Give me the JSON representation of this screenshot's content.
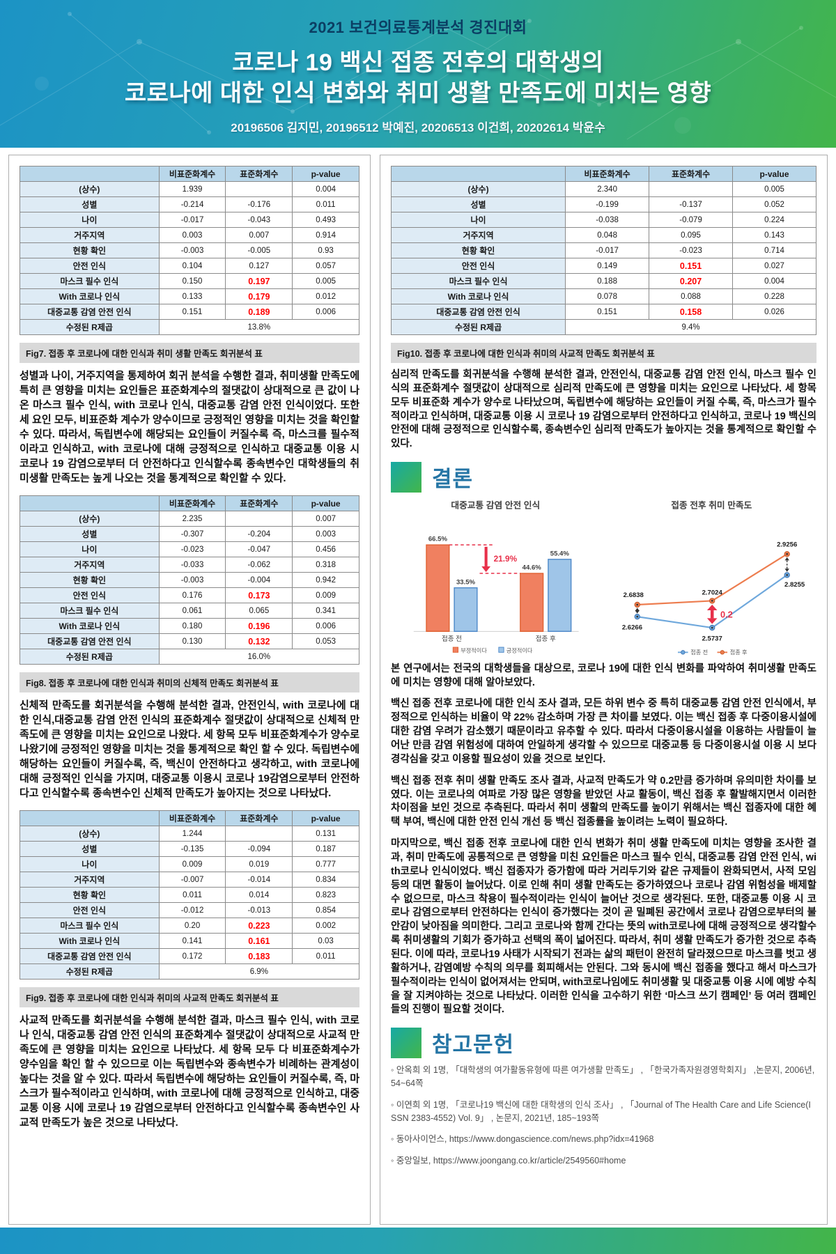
{
  "header": {
    "contest": "2021 보건의료통계분석 경진대회",
    "title_line1": "코로나 19 백신 접종 전후의 대학생의",
    "title_line2": "코로나에 대한 인식 변화와 취미 생활 만족도에 미치는 영향",
    "authors": "20196506 김지민, 20196512 박예진, 20206513 이건희, 20202614 박윤수"
  },
  "table_columns": [
    "비표준화계수",
    "표준화계수",
    "p-value"
  ],
  "r_label": "수정된 R제곱",
  "tables": [
    {
      "caption": "Fig7. 접종 후 코로나에 대한 인식과 취미 생활 만족도 회귀분석 표",
      "r_value": "13.8%",
      "rows": [
        {
          "label": "(상수)",
          "b": "1.939",
          "beta": "",
          "p": "0.004",
          "red": false
        },
        {
          "label": "성별",
          "b": "-0.214",
          "beta": "-0.176",
          "p": "0.011",
          "red": false
        },
        {
          "label": "나이",
          "b": "-0.017",
          "beta": "-0.043",
          "p": "0.493",
          "red": false
        },
        {
          "label": "거주지역",
          "b": "0.003",
          "beta": "0.007",
          "p": "0.914",
          "red": false
        },
        {
          "label": "현황 확인",
          "b": "-0.003",
          "beta": "-0.005",
          "p": "0.93",
          "red": false
        },
        {
          "label": "안전 인식",
          "b": "0.104",
          "beta": "0.127",
          "p": "0.057",
          "red": false
        },
        {
          "label": "마스크 필수 인식",
          "b": "0.150",
          "beta": "0.197",
          "p": "0.005",
          "red": true
        },
        {
          "label": "With 코로나 인식",
          "b": "0.133",
          "beta": "0.179",
          "p": "0.012",
          "red": true
        },
        {
          "label": "대중교통 감염 안전 인식",
          "b": "0.151",
          "beta": "0.189",
          "p": "0.006",
          "red": true
        }
      ]
    },
    {
      "caption": "Fig8. 접종 후 코로나에 대한 인식과 취미의 신체적 만족도 회귀분석 표",
      "r_value": "16.0%",
      "rows": [
        {
          "label": "(상수)",
          "b": "2.235",
          "beta": "",
          "p": "0.007",
          "red": false
        },
        {
          "label": "성별",
          "b": "-0.307",
          "beta": "-0.204",
          "p": "0.003",
          "red": false
        },
        {
          "label": "나이",
          "b": "-0.023",
          "beta": "-0.047",
          "p": "0.456",
          "red": false
        },
        {
          "label": "거주지역",
          "b": "-0.033",
          "beta": "-0.062",
          "p": "0.318",
          "red": false
        },
        {
          "label": "현황 확인",
          "b": "-0.003",
          "beta": "-0.004",
          "p": "0.942",
          "red": false
        },
        {
          "label": "안전 인식",
          "b": "0.176",
          "beta": "0.173",
          "p": "0.009",
          "red": true
        },
        {
          "label": "마스크 필수 인식",
          "b": "0.061",
          "beta": "0.065",
          "p": "0.341",
          "red": false
        },
        {
          "label": "With 코로나 인식",
          "b": "0.180",
          "beta": "0.196",
          "p": "0.006",
          "red": true
        },
        {
          "label": "대중교통 감염 안전 인식",
          "b": "0.130",
          "beta": "0.132",
          "p": "0.053",
          "red": true
        }
      ]
    },
    {
      "caption": "Fig9. 접종 후 코로나에 대한 인식과 취미의 사교적 만족도 회귀분석 표",
      "r_value": "6.9%",
      "rows": [
        {
          "label": "(상수)",
          "b": "1.244",
          "beta": "",
          "p": "0.131",
          "red": false
        },
        {
          "label": "성별",
          "b": "-0.135",
          "beta": "-0.094",
          "p": "0.187",
          "red": false
        },
        {
          "label": "나이",
          "b": "0.009",
          "beta": "0.019",
          "p": "0.777",
          "red": false
        },
        {
          "label": "거주지역",
          "b": "-0.007",
          "beta": "-0.014",
          "p": "0.834",
          "red": false
        },
        {
          "label": "현황 확인",
          "b": "0.011",
          "beta": "0.014",
          "p": "0.823",
          "red": false
        },
        {
          "label": "안전 인식",
          "b": "-0.012",
          "beta": "-0.013",
          "p": "0.854",
          "red": false
        },
        {
          "label": "마스크 필수 인식",
          "b": "0.20",
          "beta": "0.223",
          "p": "0.002",
          "red": true
        },
        {
          "label": "With 코로나 인식",
          "b": "0.141",
          "beta": "0.161",
          "p": "0.03",
          "red": true
        },
        {
          "label": "대중교통 감염 안전 인식",
          "b": "0.172",
          "beta": "0.183",
          "p": "0.011",
          "red": true
        }
      ]
    },
    {
      "caption": "Fig10. 접종 후 코로나에 대한 인식과 취미의 사교적 만족도 회귀분석 표",
      "r_value": "9.4%",
      "rows": [
        {
          "label": "(상수)",
          "b": "2.340",
          "beta": "",
          "p": "0.005",
          "red": false
        },
        {
          "label": "성별",
          "b": "-0.199",
          "beta": "-0.137",
          "p": "0.052",
          "red": false
        },
        {
          "label": "나이",
          "b": "-0.038",
          "beta": "-0.079",
          "p": "0.224",
          "red": false
        },
        {
          "label": "거주지역",
          "b": "0.048",
          "beta": "0.095",
          "p": "0.143",
          "red": false
        },
        {
          "label": "현황 확인",
          "b": "-0.017",
          "beta": "-0.023",
          "p": "0.714",
          "red": false
        },
        {
          "label": "안전 인식",
          "b": "0.149",
          "beta": "0.151",
          "p": "0.027",
          "red": true
        },
        {
          "label": "마스크 필수 인식",
          "b": "0.188",
          "beta": "0.207",
          "p": "0.004",
          "red": true
        },
        {
          "label": "With 코로나 인식",
          "b": "0.078",
          "beta": "0.088",
          "p": "0.228",
          "red": false
        },
        {
          "label": "대중교통 감염 안전 인식",
          "b": "0.151",
          "beta": "0.158",
          "p": "0.026",
          "red": true
        }
      ]
    }
  ],
  "paragraphs": {
    "fig7": "성별과 나이, 거주지역을 통제하여 회귀 분석을 수행한 결과, 취미생활 만족도에 특히 큰 영향을 미치는 요인들은 표준화계수의 절댓값이 상대적으로 큰 값이 나온 마스크 필수 인식, with 코로나 인식, 대중교통 감염 안전 인식이었다. 또한 세 요인 모두, 비표준화 계수가 양수이므로 긍정적인 영향을 미치는 것을 확인할 수 있다. 따라서, 독립변수에 해당되는 요인들이 커질수록 즉, 마스크를 필수적이라고 인식하고, with 코로나에 대해 긍정적으로 인식하고 대중교통 이용 시 코로나 19 감염으로부터 더 안전하다고 인식할수록 종속변수인 대학생들의 취미생활 만족도는 높게 나오는 것을 통계적으로 확인할 수 있다.",
    "fig8": "신체적 만족도를 회귀분석을 수행해 분석한 결과, 안전인식, with 코로나에 대한 인식,대중교통 감염 안전 인식의 표준화계수 절댓값이 상대적으로 신체적 만족도에 큰 영향을 미치는 요인으로 나왔다. 세 항목 모두 비표준화계수가 양수로 나왔기에 긍정적인 영향을 미치는 것을 통계적으로 확인 할 수 있다. 독립변수에 해당하는 요인들이 커질수록, 즉, 백신이 안전하다고 생각하고, with 코로나에 대해 긍정적인 인식을 가지며, 대중교통 이용시 코로나 19감염으로부터 안전하다고 인식할수록 종속변수인 신체적 만족도가 높아지는 것으로 나타났다.",
    "fig9": "사교적 만족도를 회귀분석을 수행해 분석한 결과, 마스크 필수 인식, with 코로나 인식, 대중교통 감염 안전 인식의 표준화계수 절댓값이 상대적으로 사교적 만족도에 큰 영향을 미치는 요인으로 나타났다. 세 항목 모두 다 비표준화계수가 양수임을 확인 할 수 있으므로 이는 독립변수와 종속변수가 비례하는 관계성이 높다는 것을 알 수 있다. 따라서 독립변수에 해당하는 요인들이 커질수록, 즉, 마스크가 필수적이라고 인식하며, with 코로나에 대해 긍정적으로 인식하고, 대중교통 이용 시에 코로나 19 감염으로부터 안전하다고 인식할수록 종속변수인 사교적 만족도가 높은 것으로 나타났다.",
    "fig10": "심리적 만족도를 회귀분석을 수행해 분석한 결과, 안전인식, 대중교통 감염 안전 인식, 마스크 필수 인식의 표준화계수 절댓값이 상대적으로 심리적 만족도에 큰 영향을 미치는 요인으로 나타났다. 세 항목 모두 비표준화 계수가 양수로 나타났으며, 독립변수에 해당하는 요인들이 커질 수록, 즉, 마스크가 필수적이라고 인식하며, 대중교통 이용 시 코로나 19 감염으로부터 안전하다고 인식하고, 코로나 19 백신의 안전에 대해 긍정적으로 인식할수록, 종속변수인 심리적 만족도가 높아지는 것을 통계적으로 확인할 수 있다."
  },
  "conclusion": {
    "heading": "결론",
    "paragraphs": [
      "본 연구에서는 전국의 대학생들을 대상으로, 코로나 19에 대한 인식 변화를 파악하여 취미생활 만족도에 미치는 영향에 대해 알아보았다.",
      "백신 접종 전후 코로나에 대한 인식 조사 결과, 모든 하위 변수 중 특히 대중교통 감염 안전 인식에서, 부정적으로 인식하는 비율이 약 22% 감소하며 가장 큰 차이를 보였다. 이는 백신 접종 후 다중이용시설에 대한 감염 우려가 감소했기 때문이라고 유추할 수 있다. 따라서 다중이용시설을 이용하는 사람들이 늘어난 만큼 감염 위험성에 대하여 안일하게 생각할 수 있으므로 대중교통 등 다중이용시설 이용 시 보다 경각심을 갖고 이용할 필요성이 있을 것으로 보인다.",
      "백신 접종 전후 취미 생활 만족도 조사 결과, 사교적 만족도가 약 0.2만큼 증가하며 유의미한 차이를 보였다. 이는 코로나의 여파로 가장 많은 영향을 받았던 사교 활동이, 백신 접종 후 활발해지면서 이러한 차이점을 보인 것으로 추측된다. 따라서 취미 생활의 만족도를 높이기 위해서는 백신 접종자에 대한 혜택 부여, 백신에 대한 안전 인식 개선 등 백신 접종률을 높이려는 노력이 필요하다.",
      "마지막으로, 백신 접종 전후 코로나에 대한 인식 변화가 취미 생활 만족도에 미치는 영향을 조사한 결과, 취미 만족도에 공통적으로 큰 영향을 미친 요인들은 마스크 필수 인식, 대중교통 감염 안전 인식, with코로나 인식이었다. 백신 접종자가 증가함에 따라 거리두기와 같은 규제들이 완화되면서, 사적 모임 등의 대면 활동이 늘어났다. 이로 인해 취미 생활 만족도는 증가하였으나 코로나 감염 위험성을 배제할 수 없으므로, 마스크 착용이 필수적이라는 인식이 늘어난 것으로 생각된다. 또한, 대중교통 이용 시 코로나 감염으로부터 안전하다는 인식이 증가했다는 것이 곧 밀폐된 공간에서 코로나 감염으로부터의 불안감이 낮아짐을 의미한다. 그리고 코로나와 함께 간다는 뜻의 with코로나에 대해 긍정적으로 생각할수록 취미생활의 기회가 증가하고 선택의 폭이 넓어진다. 따라서, 취미 생활 만족도가 증가한 것으로 추측된다. 이에 따라, 코로나19 사태가 시작되기 전과는 삶의 패턴이 완전히 달라졌으므로 마스크를 벗고 생활하거나, 감염예방 수칙의 의무를 회피해서는 안된다. 그와 동시에 백신 접종을 했다고 해서 마스크가 필수적이라는 인식이 없어져서는 안되며, with코로나임에도 취미생활 및 대중교통 이용 시에 예방 수칙을 잘 지켜야하는 것으로 나타났다. 이러한 인식을 고수하기 위한 ‘마스크 쓰기 캠페인’ 등 여러 캠페인들의 진행이 필요할 것이다."
    ]
  },
  "chart_data": [
    {
      "type": "bar",
      "title": "대중교통 감염 안전 인식",
      "categories": [
        "접종 전",
        "접종 후"
      ],
      "series": [
        {
          "name": "부정적이다",
          "color": "#f08060",
          "stroke": "#e06030",
          "values": [
            66.5,
            44.6
          ]
        },
        {
          "name": "긍정적이다",
          "color": "#9fc5e8",
          "stroke": "#4a86c8",
          "values": [
            33.5,
            55.4
          ]
        }
      ],
      "value_suffix": "%",
      "annotation": "21.9%",
      "annotation_color": "#e8304a",
      "ylim": [
        0,
        75
      ],
      "grid": false,
      "legend_position": "bottom"
    },
    {
      "type": "line",
      "title": "접종 전후 취미 만족도",
      "x": [
        1,
        2,
        3
      ],
      "series": [
        {
          "name": "접종 전",
          "color": "#6fa8dc",
          "stroke": "#3e76b5",
          "values": [
            2.6266,
            2.5737,
            2.8255
          ]
        },
        {
          "name": "접종 후",
          "color": "#ed7d4f",
          "stroke": "#c85a28",
          "values": [
            2.6838,
            2.7024,
            2.9256
          ]
        }
      ],
      "annotation": "0.2",
      "annotation_color": "#e8304a",
      "ylim": [
        2.5,
        3.0
      ],
      "grid": false,
      "legend_position": "bottom"
    }
  ],
  "references": {
    "heading": "참고문헌",
    "items": [
      "◦ 안옥희 외 1명, 「대학생의 여가활동유형에 따른 여가생활 만족도」 , 「한국가족자원경영학회지」 ,논문지, 2006년, 54~64쪽",
      "◦ 이연희 외 1명, 「코로나19 백신에 대한 대학생의 인식 조사」 , 「Journal of The Health Care and Life Science(ISSN 2383-4552) Vol. 9」 , 논문지, 2021년, 185~193쪽",
      "◦ 동아사이언스, https://www.dongascience.com/news.php?idx=41968",
      "◦ 중앙일보, https://www.joongang.co.kr/article/2549560#home"
    ]
  },
  "colors": {
    "header_blue": "#1c93c5",
    "header_green": "#43b549",
    "contest_title": "#0b3e63",
    "section_title": "#2575a5",
    "table_header_bg": "#b9d7ea",
    "table_label_bg": "#deebf5",
    "highlight_red": "#ff0000",
    "caption_bg": "#d9d9d9"
  }
}
